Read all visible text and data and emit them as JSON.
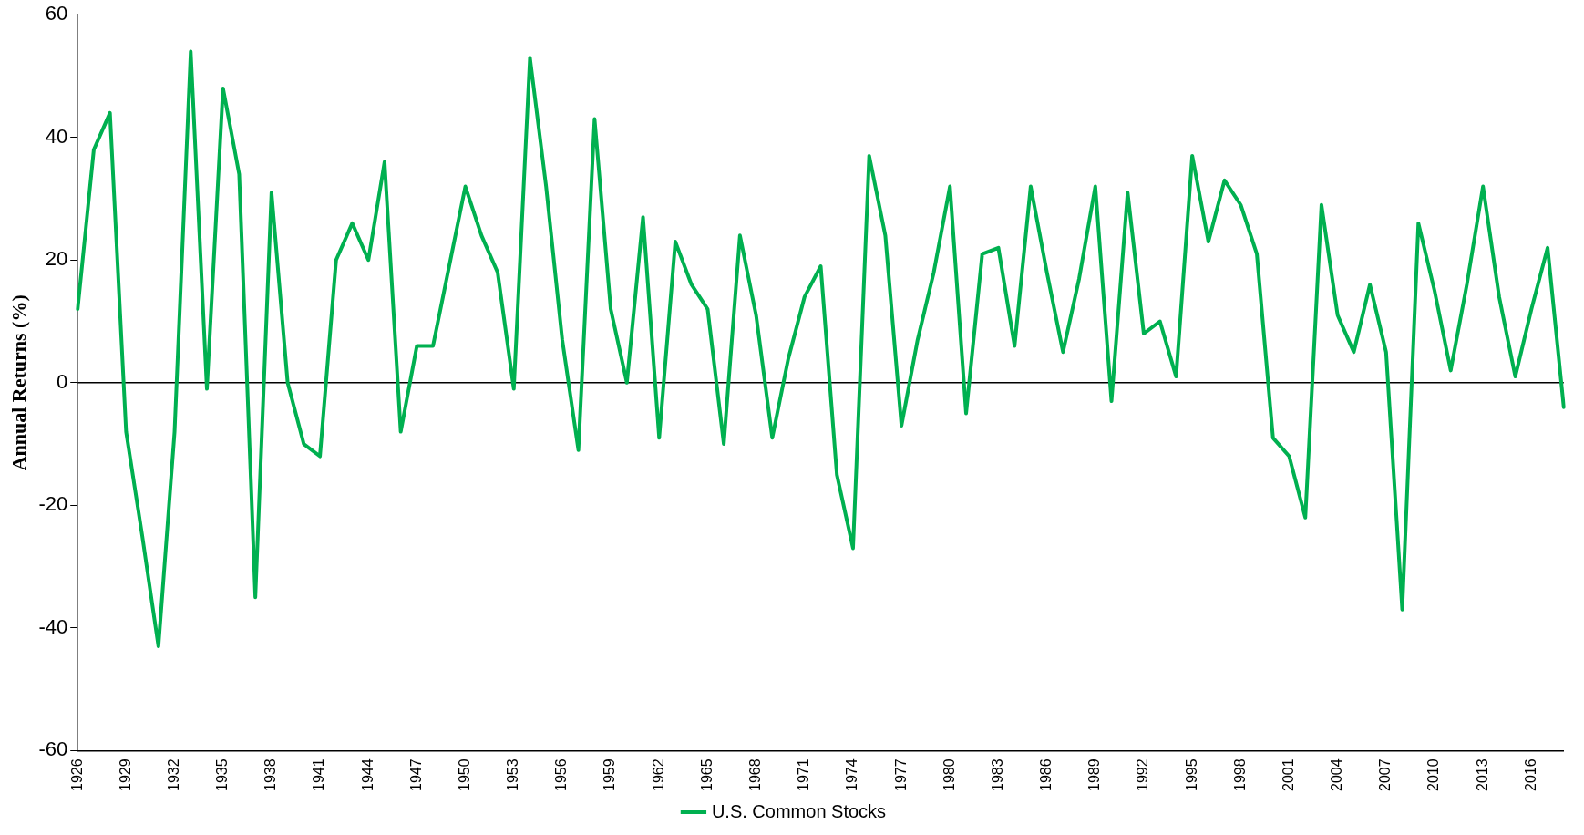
{
  "chart_data": {
    "type": "line",
    "ylabel": "Annual Returns (%)",
    "categories": [
      "1926",
      null,
      null,
      "1929",
      null,
      null,
      "1932",
      null,
      null,
      "1935",
      null,
      null,
      "1938",
      null,
      null,
      "1941",
      null,
      null,
      "1944",
      null,
      null,
      "1947",
      null,
      null,
      "1950",
      null,
      null,
      "1953",
      null,
      null,
      "1956",
      null,
      null,
      "1959",
      null,
      null,
      "1962",
      null,
      null,
      "1965",
      null,
      null,
      "1968",
      null,
      null,
      "1971",
      null,
      null,
      "1974",
      null,
      null,
      "1977",
      null,
      null,
      "1980",
      null,
      null,
      "1983",
      null,
      null,
      "1986",
      null,
      null,
      "1989",
      null,
      null,
      "1992",
      null,
      null,
      "1995",
      null,
      null,
      "1998",
      null,
      null,
      "2001",
      null,
      null,
      "2004",
      null,
      null,
      "2007",
      null,
      null,
      "2010",
      null,
      null,
      "2013",
      null,
      null,
      "2016",
      null,
      null
    ],
    "series": [
      {
        "name": "U.S. Common Stocks",
        "color": "#00b050",
        "values": [
          12,
          38,
          44,
          -8,
          -25,
          -43,
          -8,
          54,
          -1,
          48,
          34,
          -35,
          31,
          0,
          -10,
          -12,
          20,
          26,
          20,
          36,
          -8,
          6,
          6,
          19,
          32,
          24,
          18,
          -1,
          53,
          32,
          7,
          -11,
          43,
          12,
          0,
          27,
          -9,
          23,
          16,
          12,
          -10,
          24,
          11,
          -9,
          4,
          14,
          19,
          -15,
          -27,
          37,
          24,
          -7,
          7,
          18,
          32,
          -5,
          21,
          22,
          6,
          32,
          18,
          5,
          17,
          32,
          -3,
          31,
          8,
          10,
          1,
          37,
          23,
          33,
          29,
          21,
          -9,
          -12,
          -22,
          29,
          11,
          5,
          16,
          5,
          -37,
          26,
          15,
          2,
          16,
          32,
          14,
          1,
          12,
          22,
          -4
        ]
      }
    ],
    "ref_lines": [
      {
        "axis": "y",
        "value": 0,
        "color": "#000000"
      }
    ],
    "ylim": [
      -60,
      60
    ],
    "yticks": [
      -60,
      -40,
      -20,
      0,
      20,
      40,
      60
    ],
    "grid": false,
    "legend": "bottom",
    "marker": "none",
    "line_style": "solid"
  }
}
